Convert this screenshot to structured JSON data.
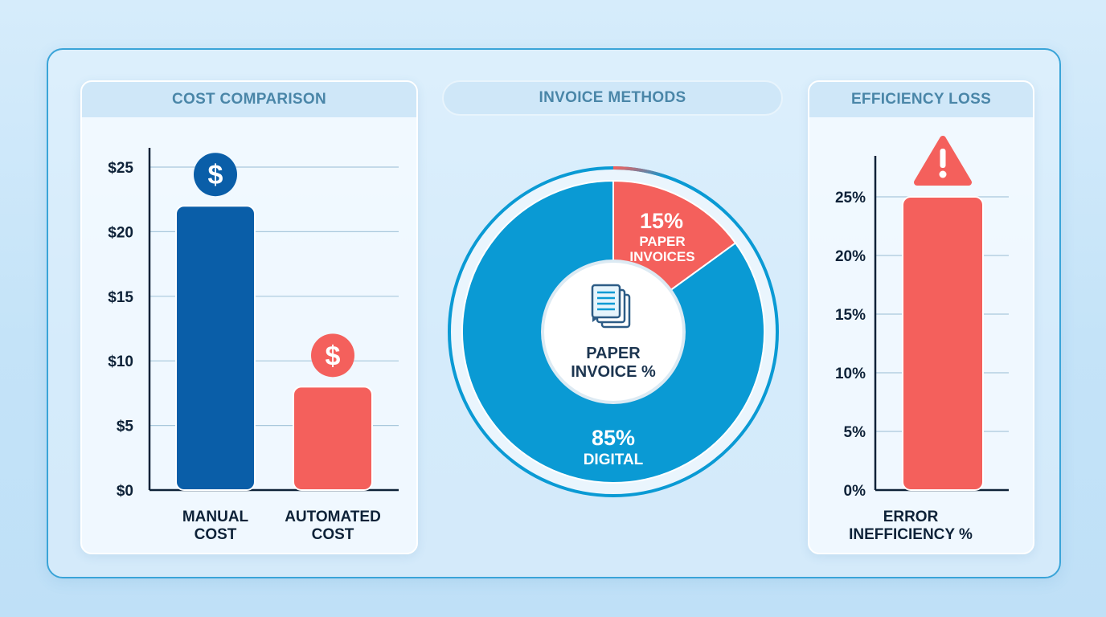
{
  "colors": {
    "blue_dark": "#0a5ea8",
    "blue": "#0a9ad4",
    "red": "#f4605c",
    "axis": "#0e2238",
    "grid": "#a9c8dc",
    "header_text": "#4a86a8"
  },
  "panels": {
    "cost": {
      "title": "COST COMPARISON",
      "icon": "dollar-icon"
    },
    "invoice": {
      "title": "INVOICE METHODS",
      "center_label": [
        "PAPER",
        "INVOICE %"
      ],
      "icon": "paper-stack-icon"
    },
    "efficiency": {
      "title": "EFFICIENCY LOSS",
      "icon": "warning-icon"
    }
  },
  "chart_data": [
    {
      "type": "bar",
      "title": "COST COMPARISON",
      "categories": [
        [
          "MANUAL",
          "COST"
        ],
        [
          "AUTOMATED",
          "COST"
        ]
      ],
      "values": [
        22,
        8
      ],
      "ylim": [
        0,
        25
      ],
      "yticks": [
        0,
        5,
        10,
        15,
        20,
        25
      ],
      "tick_prefix": "$",
      "bar_colors": [
        "#0a5ea8",
        "#f4605c"
      ],
      "icon_colors": [
        "#0a5ea8",
        "#f4605c"
      ],
      "grid": true
    },
    {
      "type": "pie",
      "title": "INVOICE METHODS",
      "slices": [
        {
          "label": "15%",
          "sub": [
            "PAPER",
            "INVOICES"
          ],
          "value": 15,
          "color": "#f4605c"
        },
        {
          "label": "85%",
          "sub": [
            "DIGITAL"
          ],
          "value": 85,
          "color": "#0a9ad4"
        }
      ]
    },
    {
      "type": "bar",
      "title": "EFFICIENCY LOSS",
      "categories": [
        [
          "ERROR",
          "INEFFICIENCY %"
        ]
      ],
      "values": [
        25
      ],
      "ylim": [
        0,
        25
      ],
      "yticks": [
        0,
        5,
        10,
        15,
        20,
        25
      ],
      "tick_suffix": "%",
      "bar_colors": [
        "#f4605c"
      ],
      "grid": true
    }
  ]
}
